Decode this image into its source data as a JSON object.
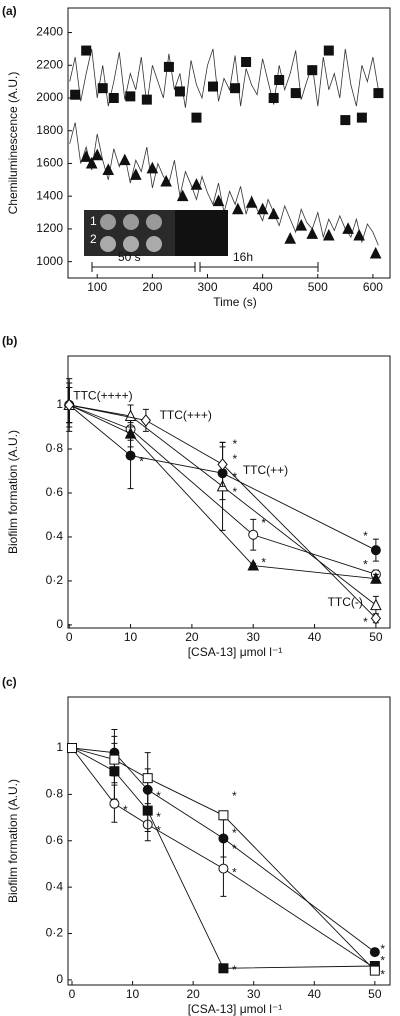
{
  "chart_data": [
    {
      "type": "line",
      "panel": "(a)",
      "ylabel": "Chemiluminescence (A.U.)",
      "xlabel": "Time (s)",
      "xlim": [
        47,
        631
      ],
      "ylim": [
        900,
        2550
      ],
      "xticks": [
        100,
        200,
        300,
        400,
        500,
        600
      ],
      "yticks": [
        1000,
        1200,
        1400,
        1600,
        1800,
        2000,
        2200,
        2400
      ],
      "inset_labels": [
        "1",
        "2",
        "50 s",
        "16h"
      ],
      "series": [
        {
          "marker": "none",
          "filled": false,
          "line": true,
          "color": "#333333",
          "x": [
            50,
            60,
            70,
            80,
            90,
            100,
            110,
            120,
            130,
            140,
            150,
            160,
            170,
            180,
            190,
            200,
            210,
            220,
            230,
            240,
            250,
            260,
            270,
            280,
            290,
            300,
            310,
            320,
            330,
            340,
            350,
            360,
            370,
            380,
            390,
            400,
            410,
            420,
            430,
            440,
            450,
            460,
            470,
            480,
            490,
            500,
            510,
            520,
            530,
            540,
            550,
            560,
            570,
            580,
            590,
            600,
            610
          ],
          "values": [
            2100,
            2250,
            1980,
            2150,
            2300,
            2000,
            2200,
            1950,
            2100,
            2280,
            1990,
            2150,
            2050,
            2250,
            1960,
            2200,
            2100,
            2000,
            2270,
            2050,
            2150,
            1940,
            2230,
            2080,
            2000,
            2200,
            2300,
            1980,
            2120,
            2050,
            2260,
            1950,
            2180,
            2080,
            2020,
            2240,
            2100,
            1960,
            2200,
            2050,
            2150,
            2290,
            1990,
            2100,
            2200,
            1950,
            2250,
            2050,
            2150,
            2000,
            2300,
            2080,
            1950,
            2200,
            2100,
            2250,
            2050
          ]
        },
        {
          "marker": "none",
          "filled": false,
          "line": true,
          "color": "#333333",
          "x": [
            50,
            60,
            70,
            80,
            90,
            100,
            110,
            120,
            130,
            140,
            150,
            160,
            170,
            180,
            190,
            200,
            210,
            220,
            230,
            240,
            250,
            260,
            270,
            280,
            290,
            300,
            310,
            320,
            330,
            340,
            350,
            360,
            370,
            380,
            390,
            400,
            410,
            420,
            430,
            440,
            450,
            460,
            470,
            480,
            490,
            500,
            510,
            520,
            530,
            540,
            550,
            560,
            570,
            580,
            590,
            600,
            610
          ],
          "values": [
            1720,
            1850,
            1600,
            1700,
            1560,
            1780,
            1620,
            1500,
            1690,
            1580,
            1650,
            1480,
            1620,
            1550,
            1700,
            1450,
            1600,
            1520,
            1480,
            1620,
            1400,
            1550,
            1470,
            1380,
            1520,
            1420,
            1350,
            1480,
            1300,
            1430,
            1350,
            1460,
            1290,
            1400,
            1320,
            1250,
            1380,
            1300,
            1220,
            1340,
            1260,
            1180,
            1320,
            1240,
            1200,
            1300,
            1150,
            1260,
            1190,
            1280,
            1200,
            1150,
            1260,
            1120,
            1230,
            1180,
            1100
          ]
        },
        {
          "marker": "square",
          "filled": true,
          "line": false,
          "color": "#111111",
          "x": [
            60,
            80,
            110,
            130,
            160,
            190,
            230,
            250,
            280,
            310,
            350,
            370,
            420,
            430,
            460,
            490,
            520,
            550,
            580,
            610
          ],
          "values": [
            2020,
            2290,
            2060,
            2000,
            2010,
            1990,
            2190,
            2040,
            1880,
            2070,
            2060,
            2220,
            2000,
            2110,
            2030,
            2170,
            2290,
            1865,
            1880,
            2030
          ]
        },
        {
          "marker": "triangle",
          "filled": true,
          "line": false,
          "color": "#111111",
          "x": [
            80,
            90,
            100,
            120,
            150,
            170,
            200,
            225,
            255,
            280,
            320,
            355,
            380,
            400,
            420,
            450,
            470,
            490,
            520,
            555,
            575,
            605
          ],
          "values": [
            1640,
            1600,
            1650,
            1560,
            1620,
            1530,
            1570,
            1490,
            1400,
            1470,
            1370,
            1320,
            1360,
            1320,
            1290,
            1140,
            1220,
            1170,
            1160,
            1200,
            1160,
            1050
          ]
        }
      ]
    },
    {
      "type": "line",
      "panel": "(b)",
      "ylabel": "Biofilm formation (A.U.)",
      "xlabel": "[CSA-13] μmol l⁻¹",
      "xlim": [
        -0.2,
        52.3
      ],
      "ylim": [
        -0.014,
        1.223
      ],
      "xticks": [
        0,
        10,
        20,
        30,
        40,
        50
      ],
      "yticks": [
        0,
        {
          "value": 0.2,
          "label": "0·2"
        },
        {
          "value": 0.4,
          "label": "0·4"
        },
        {
          "value": 0.6,
          "label": "0·6"
        },
        {
          "value": 0.8,
          "label": "0·8"
        },
        1
      ],
      "series": [
        {
          "marker": "circle",
          "filled": true,
          "line": true,
          "color": "#111111",
          "x": [
            0,
            10,
            25,
            50
          ],
          "values": [
            1,
            0.77,
            0.69,
            0.34
          ],
          "errors": [
            0.12,
            0.15,
            0.12,
            0.05
          ]
        },
        {
          "marker": "circle",
          "filled": false,
          "line": true,
          "color": "#111111",
          "x": [
            0,
            10,
            30,
            50
          ],
          "values": [
            1,
            0.89,
            0.41,
            0.23
          ],
          "errors": [
            0.08,
            0.05,
            0.07,
            0.02
          ]
        },
        {
          "marker": "triangle",
          "filled": true,
          "line": true,
          "color": "#111111",
          "x": [
            0,
            10,
            30,
            50
          ],
          "values": [
            1,
            0.87,
            0.27,
            0.21
          ],
          "errors": [
            0.1,
            0.06,
            0.01,
            0.02
          ]
        },
        {
          "marker": "triangle",
          "filled": false,
          "line": true,
          "color": "#111111",
          "x": [
            0,
            10,
            25,
            50
          ],
          "values": [
            1,
            0.95,
            0.63,
            0.09
          ],
          "errors": [
            0.08,
            0.05,
            0.2,
            0.04
          ]
        },
        {
          "marker": "diamond",
          "filled": false,
          "line": true,
          "color": "#111111",
          "x": [
            0,
            12.5,
            25,
            50
          ],
          "values": [
            1,
            0.93,
            0.73,
            0.03
          ],
          "errors": [
            0.08,
            0.05,
            0.1,
            0.02
          ]
        }
      ],
      "annotations": [
        {
          "text": "TTC(++++)",
          "x": 5.5,
          "y": 1.04
        },
        {
          "text": "TTC(+++)",
          "x": 19,
          "y": 0.95
        },
        {
          "text": "TTC(++)",
          "x": 32,
          "y": 0.7
        },
        {
          "text": "TTC(-)",
          "x": 45,
          "y": 0.1
        },
        {
          "text": "*",
          "x": 11.8,
          "y": 0.74
        },
        {
          "text": "*",
          "x": 27,
          "y": 0.82
        },
        {
          "text": "*",
          "x": 27,
          "y": 0.75
        },
        {
          "text": "*",
          "x": 27,
          "y": 0.67
        },
        {
          "text": "*",
          "x": 27,
          "y": 0.6
        },
        {
          "text": "*",
          "x": 31.7,
          "y": 0.46
        },
        {
          "text": "*",
          "x": 31.7,
          "y": 0.28
        },
        {
          "text": "*",
          "x": 48.3,
          "y": 0.4
        },
        {
          "text": "*",
          "x": 48.3,
          "y": 0.27
        },
        {
          "text": "*",
          "x": 48.3,
          "y": 0.01
        }
      ]
    },
    {
      "type": "line",
      "panel": "(c)",
      "ylabel": "Biofilm formation (A.U.)",
      "xlabel": "[CSA-13] μmol l⁻¹",
      "xlim": [
        -0.66,
        52.5
      ],
      "ylim": [
        -0.022,
        1.22
      ],
      "xticks": [
        0,
        10,
        20,
        30,
        40,
        50
      ],
      "yticks": [
        0,
        {
          "value": 0.2,
          "label": "0·2"
        },
        {
          "value": 0.4,
          "label": "0·4"
        },
        {
          "value": 0.6,
          "label": "0·6"
        },
        {
          "value": 0.8,
          "label": "0·8"
        },
        1
      ],
      "series": [
        {
          "marker": "circle",
          "filled": true,
          "line": true,
          "color": "#111111",
          "x": [
            0,
            7,
            12.5,
            25,
            50
          ],
          "values": [
            1,
            0.98,
            0.82,
            0.61,
            0.12
          ],
          "errors": [
            0.01,
            0.1,
            0.09,
            0.08,
            0.01
          ]
        },
        {
          "marker": "circle",
          "filled": false,
          "line": true,
          "color": "#111111",
          "x": [
            0,
            7,
            12.5,
            25,
            50
          ],
          "values": [
            1,
            0.76,
            0.67,
            0.48,
            0.05
          ],
          "errors": [
            0.01,
            0.08,
            0.07,
            0.12,
            0.01
          ]
        },
        {
          "marker": "square",
          "filled": true,
          "line": true,
          "color": "#111111",
          "x": [
            0,
            7,
            12.5,
            25,
            50
          ],
          "values": [
            1,
            0.9,
            0.73,
            0.05,
            0.06
          ],
          "errors": [
            0.01,
            0.12,
            0.09,
            0.01,
            0.01
          ]
        },
        {
          "marker": "square",
          "filled": false,
          "line": true,
          "color": "#111111",
          "x": [
            0,
            7,
            12.5,
            25,
            50
          ],
          "values": [
            1,
            0.95,
            0.87,
            0.71,
            0.04
          ],
          "errors": [
            0.01,
            0.1,
            0.11,
            0.01,
            0.01
          ]
        }
      ],
      "annotations": [
        {
          "text": "*",
          "x": 8.8,
          "y": 0.73
        },
        {
          "text": "*",
          "x": 14.3,
          "y": 0.79
        },
        {
          "text": "*",
          "x": 14.3,
          "y": 0.7
        },
        {
          "text": "*",
          "x": 14.3,
          "y": 0.64
        },
        {
          "text": "*",
          "x": 26.8,
          "y": 0.79
        },
        {
          "text": "*",
          "x": 26.8,
          "y": 0.63
        },
        {
          "text": "*",
          "x": 26.8,
          "y": 0.56
        },
        {
          "text": "*",
          "x": 26.8,
          "y": 0.46
        },
        {
          "text": "*",
          "x": 26.8,
          "y": 0.04
        },
        {
          "text": "*",
          "x": 51.3,
          "y": 0.13
        },
        {
          "text": "*",
          "x": 51.3,
          "y": 0.08
        },
        {
          "text": "*",
          "x": 51.3,
          "y": 0.02
        }
      ]
    }
  ]
}
